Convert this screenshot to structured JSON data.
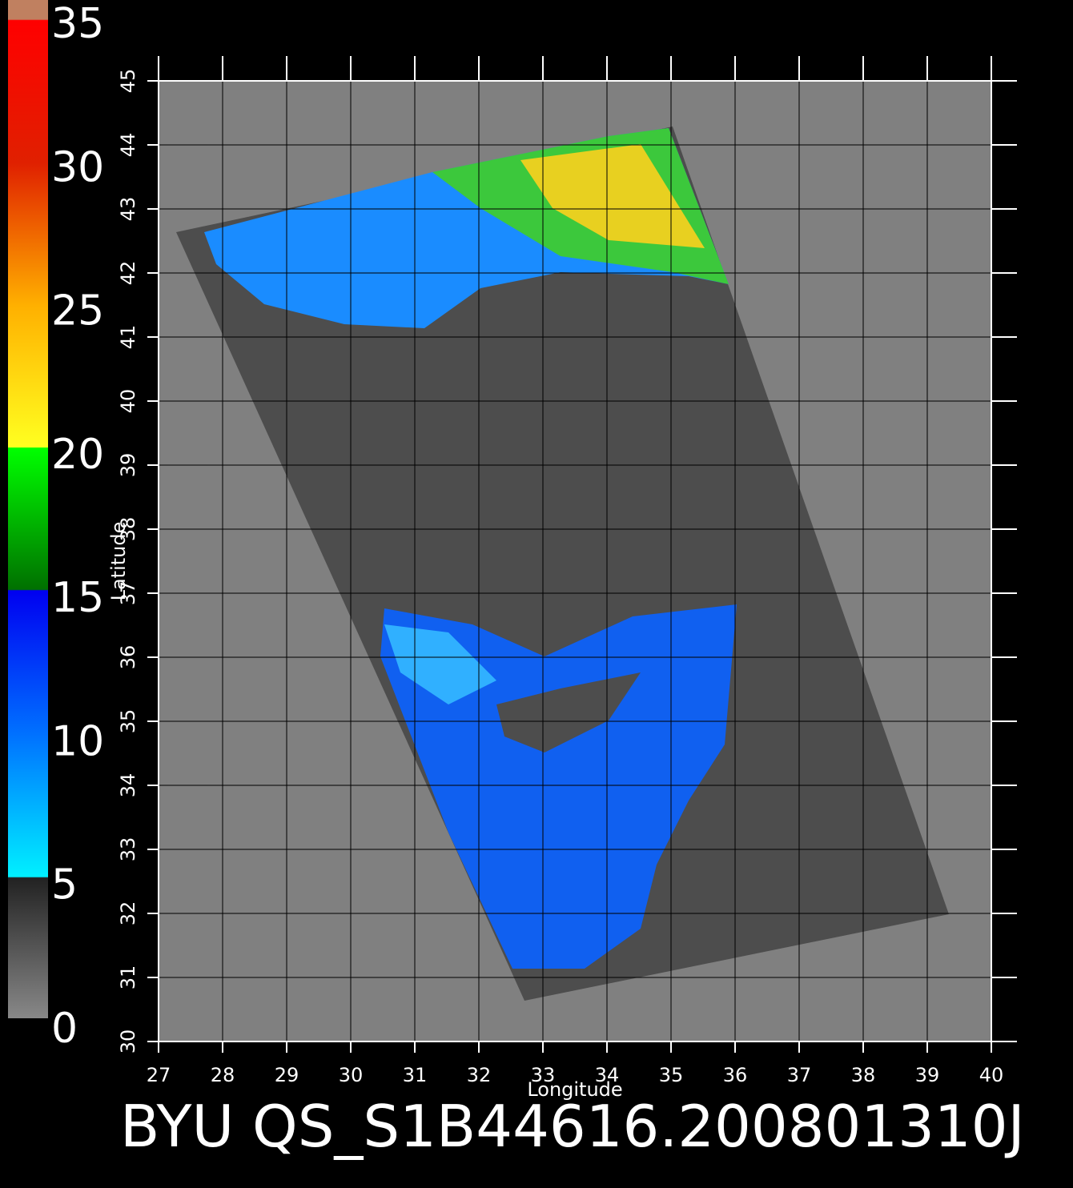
{
  "colorbar": {
    "ticks": [
      0,
      5,
      10,
      15,
      20,
      25,
      30,
      35
    ]
  },
  "map": {
    "xlabel": "Longitude",
    "ylabel": "Latitude",
    "xlim": [
      27,
      40
    ],
    "ylim": [
      30,
      45
    ],
    "xticks": [
      27,
      28,
      29,
      30,
      31,
      32,
      33,
      34,
      35,
      36,
      37,
      38,
      39,
      40
    ],
    "yticks": [
      30,
      31,
      32,
      33,
      34,
      35,
      36,
      37,
      38,
      39,
      40,
      41,
      42,
      43,
      44,
      45
    ]
  },
  "caption": "BYU QS_S1B44616.200801310J"
}
